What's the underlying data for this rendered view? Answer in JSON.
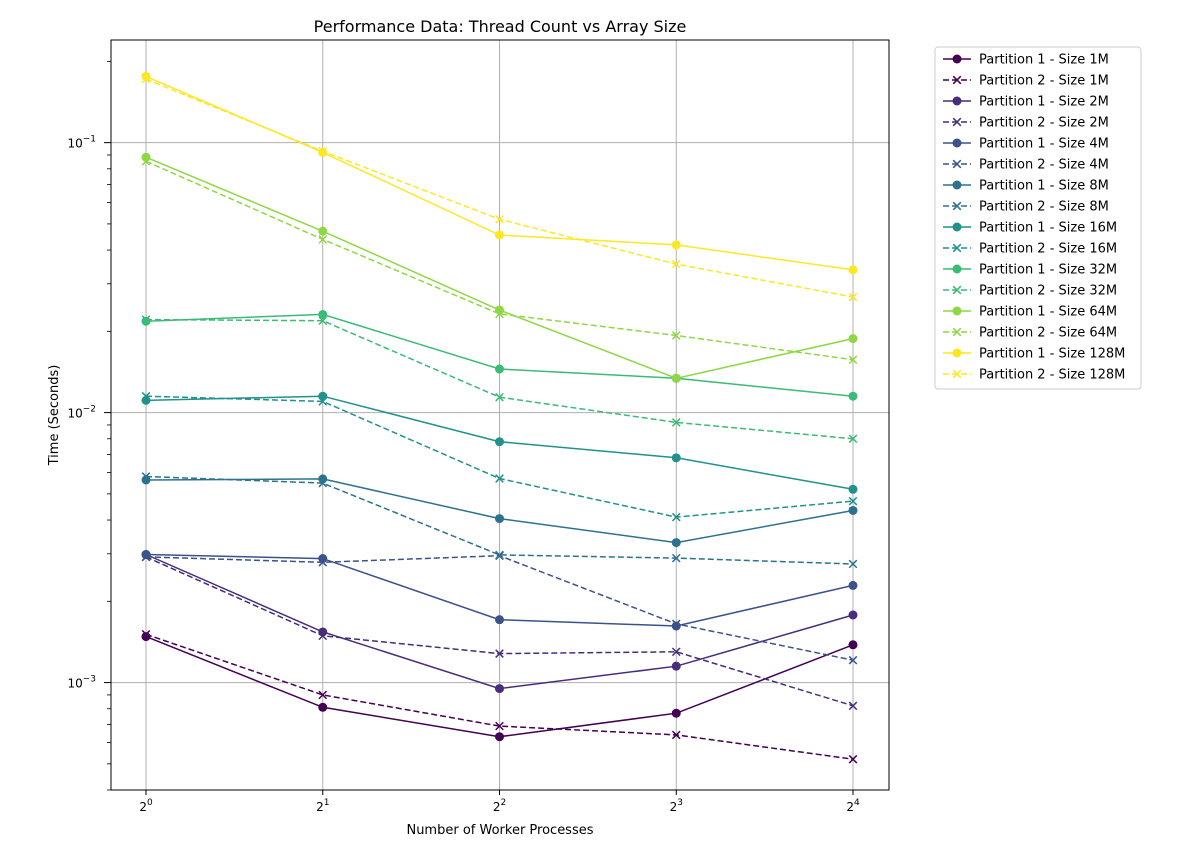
{
  "chart_data": {
    "type": "line",
    "title": "Performance Data: Thread Count vs Array Size",
    "xlabel": "Number of Worker Processes",
    "ylabel": "Time (Seconds)",
    "x": [
      1,
      2,
      4,
      8,
      16
    ],
    "x_tick_base": "2",
    "x_tick_exponents": [
      "0",
      "1",
      "2",
      "3",
      "4"
    ],
    "x_scale": "log2",
    "y_scale": "log10",
    "y_tick_base": "10",
    "y_tick_exponents": [
      "−3",
      "−2",
      "−1"
    ],
    "ylim": [
      0.0004,
      0.24
    ],
    "grid": true,
    "legend_position": "outside-right-top",
    "series": [
      {
        "name": "Partition 1 - Size 1M",
        "color": "#440154",
        "style": "solid",
        "marker": "circle",
        "values": [
          0.00148,
          0.00081,
          0.00063,
          0.00077,
          0.00138
        ]
      },
      {
        "name": "Partition 2 - Size 1M",
        "color": "#440154",
        "style": "dashed",
        "marker": "x",
        "values": [
          0.00151,
          0.0009,
          0.00069,
          0.00064,
          0.00052
        ]
      },
      {
        "name": "Partition 1 - Size 2M",
        "color": "#472d7b",
        "style": "solid",
        "marker": "circle",
        "values": [
          0.00298,
          0.00154,
          0.00095,
          0.00115,
          0.00178
        ]
      },
      {
        "name": "Partition 2 - Size 2M",
        "color": "#472d7b",
        "style": "dashed",
        "marker": "x",
        "values": [
          0.00292,
          0.00149,
          0.00128,
          0.0013,
          0.00082
        ]
      },
      {
        "name": "Partition 1 - Size 4M",
        "color": "#3b528b",
        "style": "solid",
        "marker": "circle",
        "values": [
          0.00298,
          0.00288,
          0.00171,
          0.00162,
          0.00229
        ]
      },
      {
        "name": "Partition 2 - Size 4M",
        "color": "#3b528b",
        "style": "dashed",
        "marker": "x",
        "values": [
          0.00292,
          0.00279,
          0.00295,
          0.00165,
          0.00121
        ]
      },
      {
        "name": "Partition 1 - Size 8M",
        "color": "#2c728e",
        "style": "solid",
        "marker": "circle",
        "values": [
          0.00563,
          0.00568,
          0.00405,
          0.0033,
          0.00434
        ]
      },
      {
        "name": "Partition 2 - Size 8M",
        "color": "#2c728e",
        "style": "dashed",
        "marker": "x",
        "values": [
          0.0058,
          0.00548,
          0.00297,
          0.00289,
          0.00275
        ]
      },
      {
        "name": "Partition 1 - Size 16M",
        "color": "#21918c",
        "style": "solid",
        "marker": "circle",
        "values": [
          0.0111,
          0.0115,
          0.0078,
          0.0068,
          0.0052
        ]
      },
      {
        "name": "Partition 2 - Size 16M",
        "color": "#21918c",
        "style": "dashed",
        "marker": "x",
        "values": [
          0.0115,
          0.011,
          0.0057,
          0.0041,
          0.0047
        ]
      },
      {
        "name": "Partition 1 - Size 32M",
        "color": "#3bbb75",
        "style": "solid",
        "marker": "circle",
        "values": [
          0.0218,
          0.0231,
          0.0145,
          0.0134,
          0.0115
        ]
      },
      {
        "name": "Partition 2 - Size 32M",
        "color": "#3bbb75",
        "style": "dashed",
        "marker": "x",
        "values": [
          0.0221,
          0.0219,
          0.0114,
          0.0092,
          0.008
        ]
      },
      {
        "name": "Partition 1 - Size 64M",
        "color": "#8fd744",
        "style": "solid",
        "marker": "circle",
        "values": [
          0.0883,
          0.047,
          0.024,
          0.0134,
          0.0188
        ]
      },
      {
        "name": "Partition 2 - Size 64M",
        "color": "#8fd744",
        "style": "dashed",
        "marker": "x",
        "values": [
          0.0853,
          0.0438,
          0.0232,
          0.0193,
          0.0157
        ]
      },
      {
        "name": "Partition 1 - Size 128M",
        "color": "#fde725",
        "style": "solid",
        "marker": "circle",
        "values": [
          0.176,
          0.092,
          0.0455,
          0.0418,
          0.0338
        ]
      },
      {
        "name": "Partition 2 - Size 128M",
        "color": "#fde725",
        "style": "dashed",
        "marker": "x",
        "values": [
          0.172,
          0.093,
          0.052,
          0.0355,
          0.0268
        ]
      }
    ]
  }
}
